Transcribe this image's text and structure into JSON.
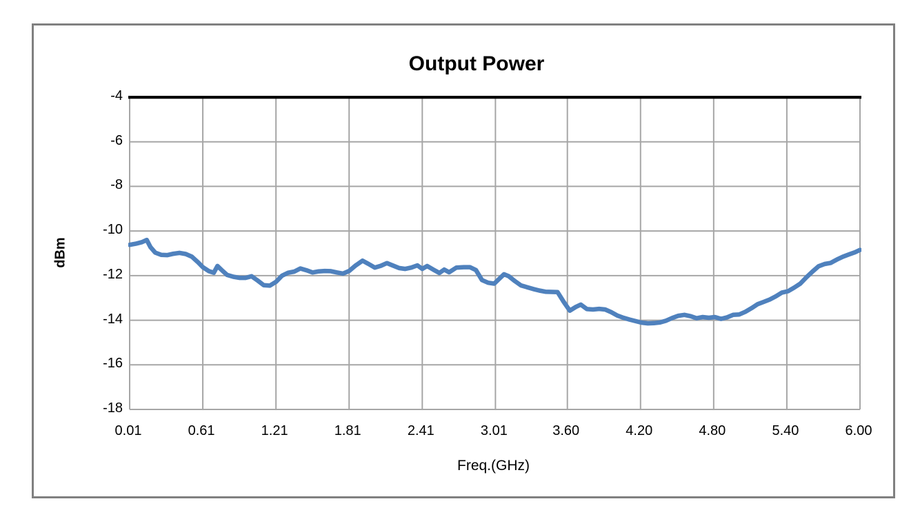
{
  "chart_data": {
    "type": "line",
    "title": "Output Power",
    "xlabel": "Freq.(GHz)",
    "ylabel": "dBm",
    "ylim": [
      -18,
      -4
    ],
    "xlim": [
      0.01,
      6.0
    ],
    "grid": true,
    "legend": "none",
    "ytick_labels": [
      "-4",
      "-6",
      "-8",
      "-10",
      "-12",
      "-14",
      "-16",
      "-18"
    ],
    "ytick_values": [
      -4,
      -6,
      -8,
      -10,
      -12,
      -14,
      -16,
      -18
    ],
    "xtick_labels": [
      "0.01",
      "0.61",
      "1.21",
      "1.81",
      "2.41",
      "3.01",
      "3.60",
      "4.20",
      "4.80",
      "5.40",
      "6.00"
    ],
    "xtick_values": [
      0.01,
      0.61,
      1.21,
      1.81,
      2.41,
      3.01,
      3.6,
      4.2,
      4.8,
      5.4,
      6.0
    ],
    "colors": {
      "series": "#4F81BD",
      "gridline": "#A6A6A6",
      "top_axis_line": "#000000",
      "outer_frame_border": "#808080",
      "text": "#000000",
      "background": "#FFFFFF"
    },
    "series": [
      {
        "name": "Output Power",
        "color": "#4F81BD",
        "x": [
          0.01,
          0.06,
          0.11,
          0.15,
          0.18,
          0.22,
          0.27,
          0.32,
          0.37,
          0.42,
          0.47,
          0.52,
          0.57,
          0.61,
          0.66,
          0.7,
          0.73,
          0.77,
          0.81,
          0.86,
          0.91,
          0.96,
          1.01,
          1.06,
          1.11,
          1.16,
          1.21,
          1.26,
          1.31,
          1.36,
          1.41,
          1.46,
          1.51,
          1.56,
          1.61,
          1.66,
          1.71,
          1.76,
          1.81,
          1.86,
          1.92,
          1.97,
          2.02,
          2.07,
          2.12,
          2.17,
          2.22,
          2.27,
          2.32,
          2.37,
          2.41,
          2.45,
          2.5,
          2.55,
          2.59,
          2.63,
          2.69,
          2.75,
          2.8,
          2.85,
          2.9,
          2.95,
          3.0,
          3.04,
          3.08,
          3.12,
          3.17,
          3.22,
          3.27,
          3.32,
          3.37,
          3.42,
          3.47,
          3.52,
          3.57,
          3.62,
          3.67,
          3.71,
          3.76,
          3.81,
          3.86,
          3.91,
          3.96,
          4.01,
          4.06,
          4.11,
          4.16,
          4.21,
          4.26,
          4.31,
          4.36,
          4.41,
          4.46,
          4.51,
          4.56,
          4.61,
          4.66,
          4.71,
          4.76,
          4.81,
          4.86,
          4.91,
          4.96,
          5.01,
          5.06,
          5.11,
          5.16,
          5.21,
          5.26,
          5.31,
          5.36,
          5.41,
          5.46,
          5.51,
          5.56,
          5.61,
          5.66,
          5.71,
          5.76,
          5.81,
          5.86,
          5.91,
          5.96,
          6.0
        ],
        "y": [
          -10.62,
          -10.57,
          -10.5,
          -10.4,
          -10.72,
          -10.97,
          -11.07,
          -11.08,
          -11.02,
          -10.98,
          -11.03,
          -11.15,
          -11.4,
          -11.62,
          -11.8,
          -11.87,
          -11.57,
          -11.78,
          -11.97,
          -12.05,
          -12.1,
          -12.1,
          -12.03,
          -12.22,
          -12.43,
          -12.45,
          -12.28,
          -12.0,
          -11.87,
          -11.82,
          -11.68,
          -11.76,
          -11.86,
          -11.81,
          -11.79,
          -11.8,
          -11.86,
          -11.91,
          -11.79,
          -11.56,
          -11.33,
          -11.48,
          -11.64,
          -11.56,
          -11.44,
          -11.55,
          -11.66,
          -11.7,
          -11.64,
          -11.54,
          -11.7,
          -11.57,
          -11.73,
          -11.88,
          -11.73,
          -11.85,
          -11.64,
          -11.62,
          -11.62,
          -11.75,
          -12.2,
          -12.32,
          -12.36,
          -12.15,
          -11.94,
          -12.03,
          -12.25,
          -12.44,
          -12.52,
          -12.6,
          -12.67,
          -12.72,
          -12.73,
          -12.74,
          -13.18,
          -13.57,
          -13.4,
          -13.3,
          -13.5,
          -13.52,
          -13.49,
          -13.52,
          -13.64,
          -13.79,
          -13.89,
          -13.97,
          -14.04,
          -14.11,
          -14.14,
          -14.13,
          -14.1,
          -14.02,
          -13.9,
          -13.8,
          -13.76,
          -13.82,
          -13.91,
          -13.86,
          -13.89,
          -13.86,
          -13.94,
          -13.87,
          -13.76,
          -13.74,
          -13.62,
          -13.46,
          -13.28,
          -13.18,
          -13.07,
          -12.93,
          -12.76,
          -12.7,
          -12.54,
          -12.36,
          -12.08,
          -11.82,
          -11.58,
          -11.48,
          -11.43,
          -11.28,
          -11.15,
          -11.05,
          -10.95,
          -10.85
        ]
      }
    ]
  }
}
